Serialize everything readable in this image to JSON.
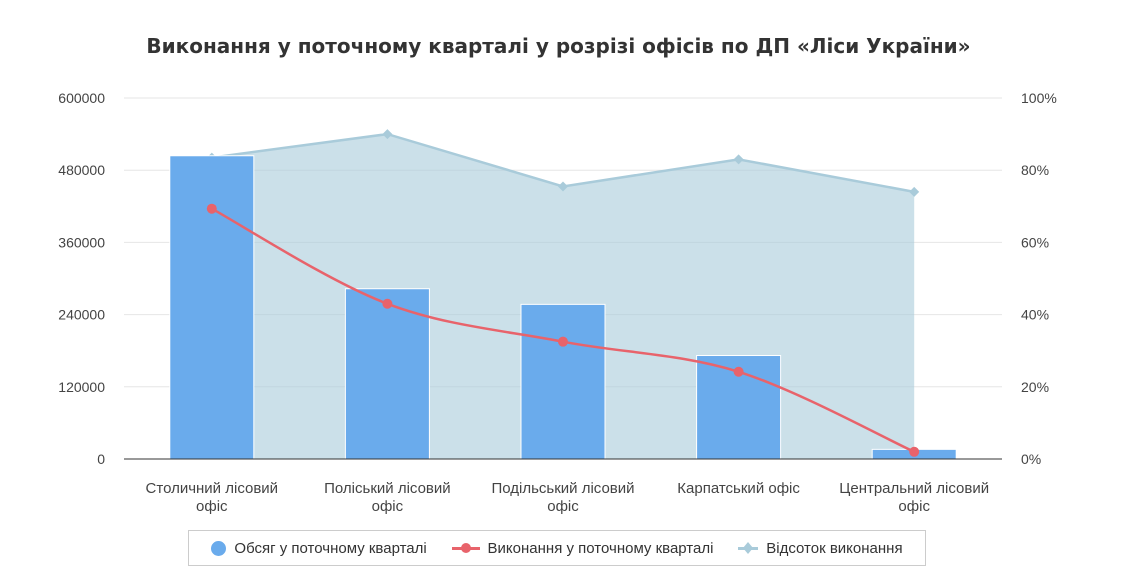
{
  "chart_data": {
    "type": "bar",
    "title": "Виконання у поточному кварталі у розрізі офісів по ДП «Ліси України»",
    "categories": [
      [
        "Столичний лісовий",
        "офіс"
      ],
      [
        "Поліський лісовий",
        "офіс"
      ],
      [
        "Подільський лісовий",
        "офіс"
      ],
      [
        "Карпатський офіс"
      ],
      [
        "Центральний лісовий",
        "офіс"
      ]
    ],
    "left_axis": {
      "min": 0,
      "max": 600000,
      "ticks": [
        "0",
        "120000",
        "240000",
        "360000",
        "480000",
        "600000"
      ]
    },
    "right_axis": {
      "min": 0,
      "max": 100,
      "ticks": [
        "0%",
        "20%",
        "40%",
        "60%",
        "80%",
        "100%"
      ]
    },
    "series": [
      {
        "name": "Обсяг у поточному кварталі",
        "type": "bar",
        "axis": "left",
        "values": [
          504000,
          283000,
          257000,
          172000,
          16000
        ],
        "color": "#6aabec"
      },
      {
        "name": "Виконання у поточному кварталі",
        "type": "line",
        "axis": "left",
        "values": [
          416000,
          258000,
          195000,
          145000,
          12000
        ],
        "color": "#e8636b"
      },
      {
        "name": "Відсоток виконання",
        "type": "area",
        "axis": "right",
        "values": [
          83.5,
          90,
          75.5,
          83,
          74
        ],
        "color": "#a9cbda"
      }
    ]
  }
}
